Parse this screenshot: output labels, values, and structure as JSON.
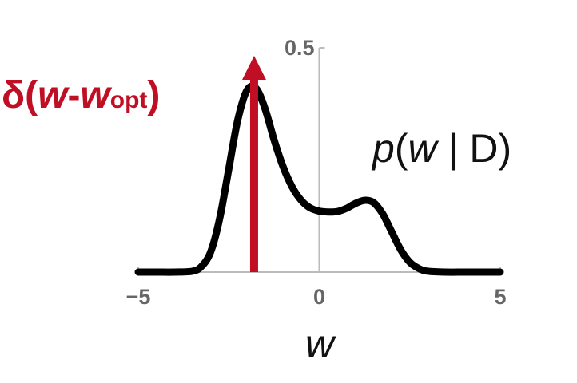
{
  "chart_data": {
    "type": "line",
    "x_label": {
      "text": "w"
    },
    "xlim": [
      -5,
      5
    ],
    "ylim": [
      0,
      0.5
    ],
    "x_ticks": [
      {
        "value": -5,
        "label": "−5"
      },
      {
        "value": 0,
        "label": "0"
      },
      {
        "value": 5,
        "label": "5"
      }
    ],
    "y_ticks": [
      {
        "value": 0.5,
        "label": "0.5"
      }
    ],
    "grid": false,
    "series": [
      {
        "name": "p(w | D)",
        "label_parts": {
          "p": "p",
          "open": "(",
          "w": "w",
          "bar": " | ",
          "D": "D",
          "close": ")"
        },
        "color": "#000000",
        "x": [
          -5,
          -4.5,
          -4,
          -3.5,
          -3.25,
          -3,
          -2.75,
          -2.5,
          -2.25,
          -2,
          -1.75,
          -1.5,
          -1.25,
          -1,
          -0.75,
          -0.5,
          -0.25,
          0,
          0.25,
          0.5,
          0.75,
          1,
          1.25,
          1.5,
          1.75,
          2,
          2.25,
          2.5,
          2.75,
          3,
          3.5,
          4,
          4.5,
          5
        ],
        "y": [
          0,
          0,
          0,
          0.002,
          0.013,
          0.045,
          0.12,
          0.23,
          0.34,
          0.405,
          0.41,
          0.365,
          0.295,
          0.235,
          0.19,
          0.16,
          0.143,
          0.136,
          0.134,
          0.135,
          0.142,
          0.153,
          0.16,
          0.155,
          0.13,
          0.09,
          0.05,
          0.022,
          0.008,
          0.002,
          0,
          0,
          0,
          0
        ]
      },
      {
        "name": "δ(w-w_opt)",
        "type": "impulse",
        "label_parts": {
          "delta": "δ(",
          "w1": "w",
          "minus": "-",
          "w2": "w",
          "sub": "opt",
          "close": ")"
        },
        "color": "#c00f24",
        "x": [
          -1.8
        ]
      }
    ]
  }
}
